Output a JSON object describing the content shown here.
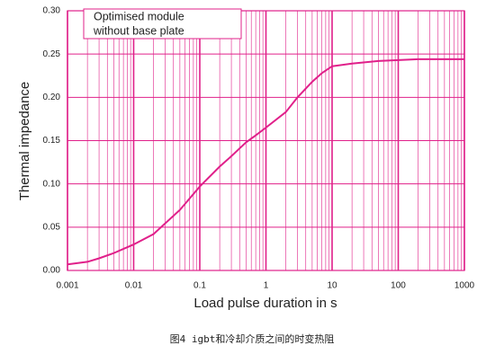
{
  "chart_data": {
    "type": "line",
    "xlabel": "Load pulse duration in s",
    "ylabel": "Thermal impedance",
    "annotation": [
      "Optimised module",
      "without base plate"
    ],
    "caption": "图4 igbt和冷却介质之间的时变热阻",
    "x": [
      0.001,
      0.002,
      0.003,
      0.005,
      0.01,
      0.02,
      0.05,
      0.1,
      0.2,
      0.3,
      0.5,
      0.7,
      1,
      2,
      3,
      5,
      7,
      10,
      20,
      50,
      100,
      200,
      1000
    ],
    "values": [
      0.007,
      0.01,
      0.014,
      0.02,
      0.03,
      0.042,
      0.07,
      0.097,
      0.12,
      0.132,
      0.148,
      0.156,
      0.165,
      0.183,
      0.2,
      0.218,
      0.228,
      0.236,
      0.239,
      0.242,
      0.243,
      0.244,
      0.244
    ],
    "color": "#e0208a",
    "xscale": "log",
    "grid": true,
    "xlim": [
      0.001,
      1000
    ],
    "xticks": [
      0.001,
      0.01,
      0.1,
      1,
      10,
      100,
      1000
    ],
    "ylim": [
      0,
      0.3
    ],
    "yticks": [
      {
        "value": 0,
        "label": "0.00"
      },
      {
        "value": 0.05,
        "label": "0.05"
      },
      {
        "value": 0.1,
        "label": "0.10"
      },
      {
        "value": 0.15,
        "label": "0.15"
      },
      {
        "value": 0.2,
        "label": "0.20"
      },
      {
        "value": 0.25,
        "label": "0.25"
      },
      {
        "value": 0.3,
        "label": "0.30"
      }
    ]
  }
}
